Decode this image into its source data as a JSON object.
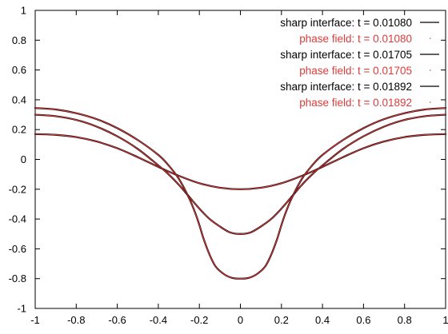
{
  "chart_data": {
    "type": "line",
    "xlim": [
      -1,
      1
    ],
    "ylim": [
      -1,
      1
    ],
    "xticks": [
      -1,
      -0.8,
      -0.6,
      -0.4,
      -0.2,
      0,
      0.2,
      0.4,
      0.6,
      0.8,
      1
    ],
    "yticks": [
      -1,
      -0.8,
      -0.6,
      -0.4,
      -0.2,
      0,
      0.2,
      0.4,
      0.6,
      0.8,
      1
    ],
    "xtick_labels": [
      "-1",
      "-0.8",
      "-0.6",
      "-0.4",
      "-0.2",
      "0",
      "0.2",
      "0.4",
      "0.6",
      "0.8",
      "1"
    ],
    "ytick_labels": [
      "-1",
      "-0.8",
      "-0.6",
      "-0.4",
      "-0.2",
      "0",
      "0.2",
      "0.4",
      "0.6",
      "0.8",
      "1"
    ],
    "grid": false,
    "legend_position": "top-right",
    "series": [
      {
        "name": "sharp interface: t = 0.01080",
        "color": "#000000",
        "style": "solid",
        "x": [
          -1,
          -0.9,
          -0.8,
          -0.7,
          -0.6,
          -0.5,
          -0.4,
          -0.3,
          -0.2,
          -0.1,
          0,
          0.1,
          0.2,
          0.3,
          0.4,
          0.5,
          0.6,
          0.7,
          0.8,
          0.9,
          1
        ],
        "y": [
          0.17,
          0.165,
          0.15,
          0.12,
          0.075,
          0.015,
          -0.05,
          -0.11,
          -0.16,
          -0.19,
          -0.2,
          -0.19,
          -0.16,
          -0.11,
          -0.05,
          0.015,
          0.075,
          0.12,
          0.15,
          0.165,
          0.17
        ]
      },
      {
        "name": "phase field: t = 0.01080",
        "color": "#e03a3a",
        "style": "dotted",
        "x": [
          -1,
          -0.9,
          -0.8,
          -0.7,
          -0.6,
          -0.5,
          -0.4,
          -0.3,
          -0.2,
          -0.1,
          0,
          0.1,
          0.2,
          0.3,
          0.4,
          0.5,
          0.6,
          0.7,
          0.8,
          0.9,
          1
        ],
        "y": [
          0.17,
          0.165,
          0.15,
          0.12,
          0.075,
          0.015,
          -0.05,
          -0.11,
          -0.16,
          -0.19,
          -0.2,
          -0.19,
          -0.16,
          -0.11,
          -0.05,
          0.015,
          0.075,
          0.12,
          0.15,
          0.165,
          0.17
        ]
      },
      {
        "name": "sharp interface: t = 0.01705",
        "color": "#000000",
        "style": "solid",
        "x": [
          -1,
          -0.9,
          -0.8,
          -0.7,
          -0.6,
          -0.5,
          -0.4,
          -0.35,
          -0.3,
          -0.25,
          -0.2,
          -0.15,
          -0.1,
          -0.05,
          0,
          0.05,
          0.1,
          0.15,
          0.2,
          0.25,
          0.3,
          0.35,
          0.4,
          0.5,
          0.6,
          0.7,
          0.8,
          0.9,
          1
        ],
        "y": [
          0.3,
          0.29,
          0.265,
          0.22,
          0.155,
          0.07,
          -0.04,
          -0.1,
          -0.17,
          -0.25,
          -0.33,
          -0.4,
          -0.45,
          -0.49,
          -0.5,
          -0.49,
          -0.45,
          -0.4,
          -0.33,
          -0.25,
          -0.17,
          -0.1,
          -0.04,
          0.07,
          0.155,
          0.22,
          0.265,
          0.29,
          0.3
        ]
      },
      {
        "name": "phase field: t = 0.01705",
        "color": "#e03a3a",
        "style": "dotted",
        "x": [
          -1,
          -0.9,
          -0.8,
          -0.7,
          -0.6,
          -0.5,
          -0.4,
          -0.35,
          -0.3,
          -0.25,
          -0.2,
          -0.15,
          -0.1,
          -0.05,
          0,
          0.05,
          0.1,
          0.15,
          0.2,
          0.25,
          0.3,
          0.35,
          0.4,
          0.5,
          0.6,
          0.7,
          0.8,
          0.9,
          1
        ],
        "y": [
          0.3,
          0.29,
          0.265,
          0.22,
          0.155,
          0.07,
          -0.04,
          -0.1,
          -0.17,
          -0.25,
          -0.33,
          -0.4,
          -0.45,
          -0.49,
          -0.5,
          -0.49,
          -0.45,
          -0.4,
          -0.33,
          -0.25,
          -0.17,
          -0.1,
          -0.04,
          0.07,
          0.155,
          0.22,
          0.265,
          0.29,
          0.3
        ]
      },
      {
        "name": "sharp interface: t = 0.01892",
        "color": "#000000",
        "style": "solid",
        "x": [
          -1,
          -0.9,
          -0.8,
          -0.7,
          -0.6,
          -0.5,
          -0.4,
          -0.35,
          -0.3,
          -0.25,
          -0.22,
          -0.2,
          -0.18,
          -0.15,
          -0.12,
          -0.08,
          -0.04,
          0,
          0.04,
          0.08,
          0.12,
          0.15,
          0.18,
          0.2,
          0.22,
          0.25,
          0.3,
          0.35,
          0.4,
          0.5,
          0.6,
          0.7,
          0.8,
          0.9,
          1
        ],
        "y": [
          0.345,
          0.335,
          0.31,
          0.27,
          0.21,
          0.13,
          0.03,
          -0.04,
          -0.13,
          -0.26,
          -0.36,
          -0.44,
          -0.53,
          -0.64,
          -0.72,
          -0.77,
          -0.795,
          -0.8,
          -0.795,
          -0.77,
          -0.72,
          -0.64,
          -0.53,
          -0.44,
          -0.36,
          -0.26,
          -0.13,
          -0.04,
          0.03,
          0.13,
          0.21,
          0.27,
          0.31,
          0.335,
          0.345
        ]
      },
      {
        "name": "phase field: t = 0.01892",
        "color": "#e03a3a",
        "style": "dotted",
        "x": [
          -1,
          -0.9,
          -0.8,
          -0.7,
          -0.6,
          -0.5,
          -0.4,
          -0.35,
          -0.3,
          -0.25,
          -0.22,
          -0.2,
          -0.18,
          -0.15,
          -0.12,
          -0.08,
          -0.04,
          0,
          0.04,
          0.08,
          0.12,
          0.15,
          0.18,
          0.2,
          0.22,
          0.25,
          0.3,
          0.35,
          0.4,
          0.5,
          0.6,
          0.7,
          0.8,
          0.9,
          1
        ],
        "y": [
          0.345,
          0.335,
          0.31,
          0.27,
          0.21,
          0.13,
          0.03,
          -0.04,
          -0.13,
          -0.26,
          -0.36,
          -0.44,
          -0.53,
          -0.64,
          -0.72,
          -0.77,
          -0.795,
          -0.8,
          -0.795,
          -0.77,
          -0.72,
          -0.64,
          -0.53,
          -0.44,
          -0.36,
          -0.26,
          -0.13,
          -0.04,
          0.03,
          0.13,
          0.21,
          0.27,
          0.31,
          0.335,
          0.345
        ]
      }
    ]
  }
}
